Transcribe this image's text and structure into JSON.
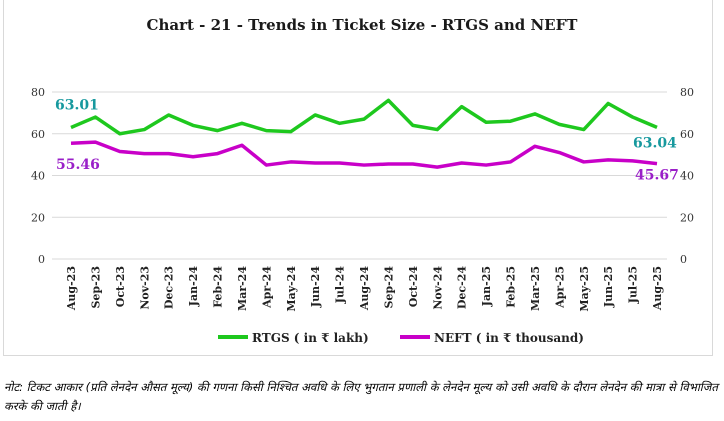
{
  "chart_data": {
    "type": "line",
    "title": "Chart - 21 - Trends in Ticket Size - RTGS and NEFT",
    "categories": [
      "Aug-23",
      "Sep-23",
      "Oct-23",
      "Nov-23",
      "Dec-23",
      "Jan-24",
      "Feb-24",
      "Mar-24",
      "Apr-24",
      "May-24",
      "Jun-24",
      "Jul-24",
      "Aug-24",
      "Sep-24",
      "Oct-24",
      "Nov-24",
      "Dec-24",
      "Jan-25",
      "Feb-25",
      "Mar-25",
      "Apr-25",
      "May-25",
      "Jun-25",
      "Jul-25",
      "Aug-25"
    ],
    "ylim": [
      0,
      80
    ],
    "yticks": [
      0,
      20,
      40,
      60,
      80
    ],
    "grid": true,
    "legend": "bottom",
    "series": [
      {
        "name": "RTGS ( in ₹ lakh)",
        "color": "#1ec81e",
        "label_color": "#17999e",
        "values": [
          63.01,
          68,
          60,
          62,
          69,
          64,
          61.5,
          65,
          61.5,
          61,
          69,
          65,
          67,
          76,
          64,
          62,
          73,
          65.5,
          66,
          69.5,
          64.5,
          62,
          74.5,
          68,
          63.04
        ],
        "labels": {
          "first": "63.01",
          "last": "63.04"
        }
      },
      {
        "name": "NEFT ( in ₹ thousand)",
        "color": "#c800c8",
        "label_color": "#9a1fc8",
        "values": [
          55.46,
          56,
          51.5,
          50.5,
          50.5,
          49,
          50.5,
          54.5,
          45,
          46.5,
          46,
          46,
          45,
          45.5,
          45.5,
          44,
          46,
          45,
          46.5,
          54,
          51,
          46.5,
          47.5,
          47,
          45.67
        ],
        "labels": {
          "first": "55.46",
          "last": "45.67"
        }
      }
    ]
  },
  "note": "नोट: टिकट आकार (प्रति लेनदेन औसत मूल्य) की गणना किसी निश्चित अवधि के लिए भुगतान प्रणाली के लेनदेन मूल्य को उसी अवधि के दौरान लेनदेन की मात्रा से विभाजित करके की जाती है।"
}
